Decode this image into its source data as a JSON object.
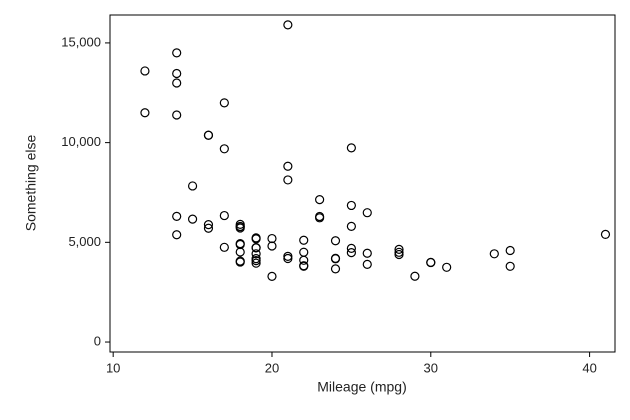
{
  "chart_data": {
    "type": "scatter",
    "xlabel": "Mileage (mpg)",
    "ylabel": "Something else",
    "x": [
      22,
      17,
      22,
      20,
      15,
      18,
      26,
      20,
      16,
      19,
      14,
      14,
      21,
      29,
      16,
      22,
      22,
      24,
      19,
      30,
      18,
      16,
      17,
      28,
      21,
      12,
      12,
      14,
      22,
      14,
      15,
      18,
      14,
      20,
      21,
      19,
      19,
      18,
      19,
      24,
      16,
      28,
      34,
      25,
      26,
      18,
      18,
      18,
      19,
      19,
      19,
      24,
      17,
      23,
      25,
      23,
      35,
      24,
      21,
      21,
      25,
      28,
      30,
      14,
      26,
      35,
      18,
      31,
      18,
      23,
      41,
      25,
      25,
      17
    ],
    "values": [
      4099,
      4749,
      3799,
      4816,
      7827,
      5788,
      4453,
      5189,
      10372,
      4082,
      11385,
      14500,
      15906,
      3299,
      5705,
      4504,
      5104,
      3667,
      3955,
      3984,
      4010,
      5886,
      6342,
      4389,
      4187,
      11497,
      13594,
      13466,
      3829,
      5379,
      6165,
      4516,
      6303,
      3291,
      8814,
      5172,
      4733,
      4890,
      4181,
      4195,
      10371,
      4647,
      4425,
      4482,
      6486,
      4060,
      5798,
      4934,
      5222,
      4723,
      4424,
      4172,
      9690,
      6295,
      9735,
      6229,
      4589,
      5079,
      8129,
      4296,
      5799,
      4499,
      3995,
      12990,
      3895,
      3798,
      5899,
      3748,
      5719,
      7140,
      5397,
      4697,
      6850,
      11995
    ],
    "color": "#000000",
    "xlim": [
      9.8,
      41.6
    ],
    "xticks": [
      10,
      20,
      30,
      40
    ],
    "ylim": [
      -500,
      16400
    ],
    "yticks": [
      0,
      {
        "value": 5000,
        "label": "5,000"
      },
      {
        "value": 10000,
        "label": "10,000"
      },
      {
        "value": 15000,
        "label": "15,000"
      }
    ]
  }
}
